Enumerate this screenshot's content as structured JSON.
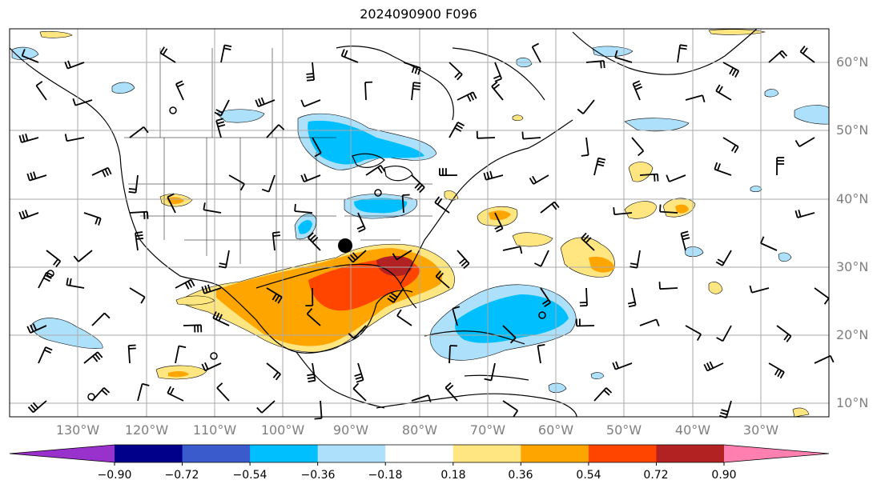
{
  "title": "2024090900 F096",
  "lat_labels": [
    "60°N",
    "50°N",
    "40°N",
    "30°N",
    "20°N",
    "10°N"
  ],
  "lon_labels": [
    "130°W",
    "120°W",
    "110°W",
    "100°W",
    "90°W",
    "80°W",
    "70°W",
    "60°W",
    "50°W",
    "40°W",
    "30°W"
  ],
  "colorbar": {
    "labels": [
      "−0.90",
      "−0.72",
      "−0.54",
      "−0.36",
      "−0.18",
      "0.18",
      "0.36",
      "0.54",
      "0.72",
      "0.90"
    ],
    "colors": [
      "#9932cc",
      "#00008b",
      "#3a5bcc",
      "#00bfff",
      "#ade0fa",
      "#ffffff",
      "#ffe680",
      "#ffa500",
      "#ff4500",
      "#b22222",
      "#ff80b0"
    ]
  },
  "colors": {
    "grid": "#aaaaaa",
    "coast": "#000000",
    "light_blue": "#ade0fa",
    "blue": "#00bfff",
    "yellow": "#ffe680",
    "orange": "#ffa500",
    "red_orange": "#ff4500",
    "dark_red": "#b22222"
  },
  "markers": [
    {
      "name": "storm-center-dot",
      "type": "dot",
      "label": ""
    }
  ]
}
